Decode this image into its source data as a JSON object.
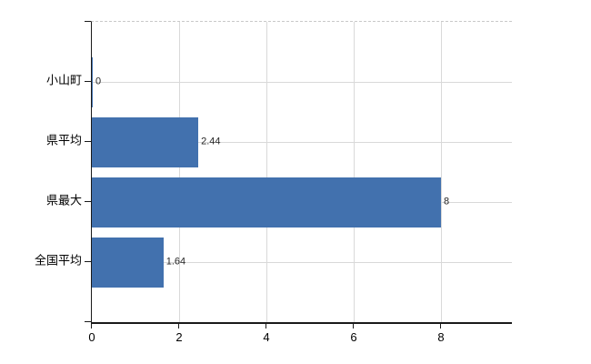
{
  "chart_data": {
    "type": "bar",
    "orientation": "horizontal",
    "title": "",
    "xlabel": "",
    "ylabel": "",
    "categories": [
      "小山町",
      "県平均",
      "県最大",
      "全国平均"
    ],
    "values": [
      0,
      2.44,
      8,
      1.64
    ],
    "value_labels": [
      "0",
      "2.44",
      "8",
      "1.64"
    ],
    "xticks": [
      0,
      2,
      4,
      6,
      8
    ],
    "xtick_labels": [
      "0",
      "2",
      "4",
      "6",
      "8"
    ],
    "xlim": [
      0,
      9.625
    ],
    "grid": true,
    "legend": false,
    "colors": {
      "bar": "#4271ae",
      "axis": "#1a1a1a",
      "gridline": "#d9d9d9",
      "top_border": "#c9c9c9",
      "category_text": "#000000",
      "tick_text": "#000000",
      "value_text": "#262626",
      "background": "#ffffff"
    }
  }
}
